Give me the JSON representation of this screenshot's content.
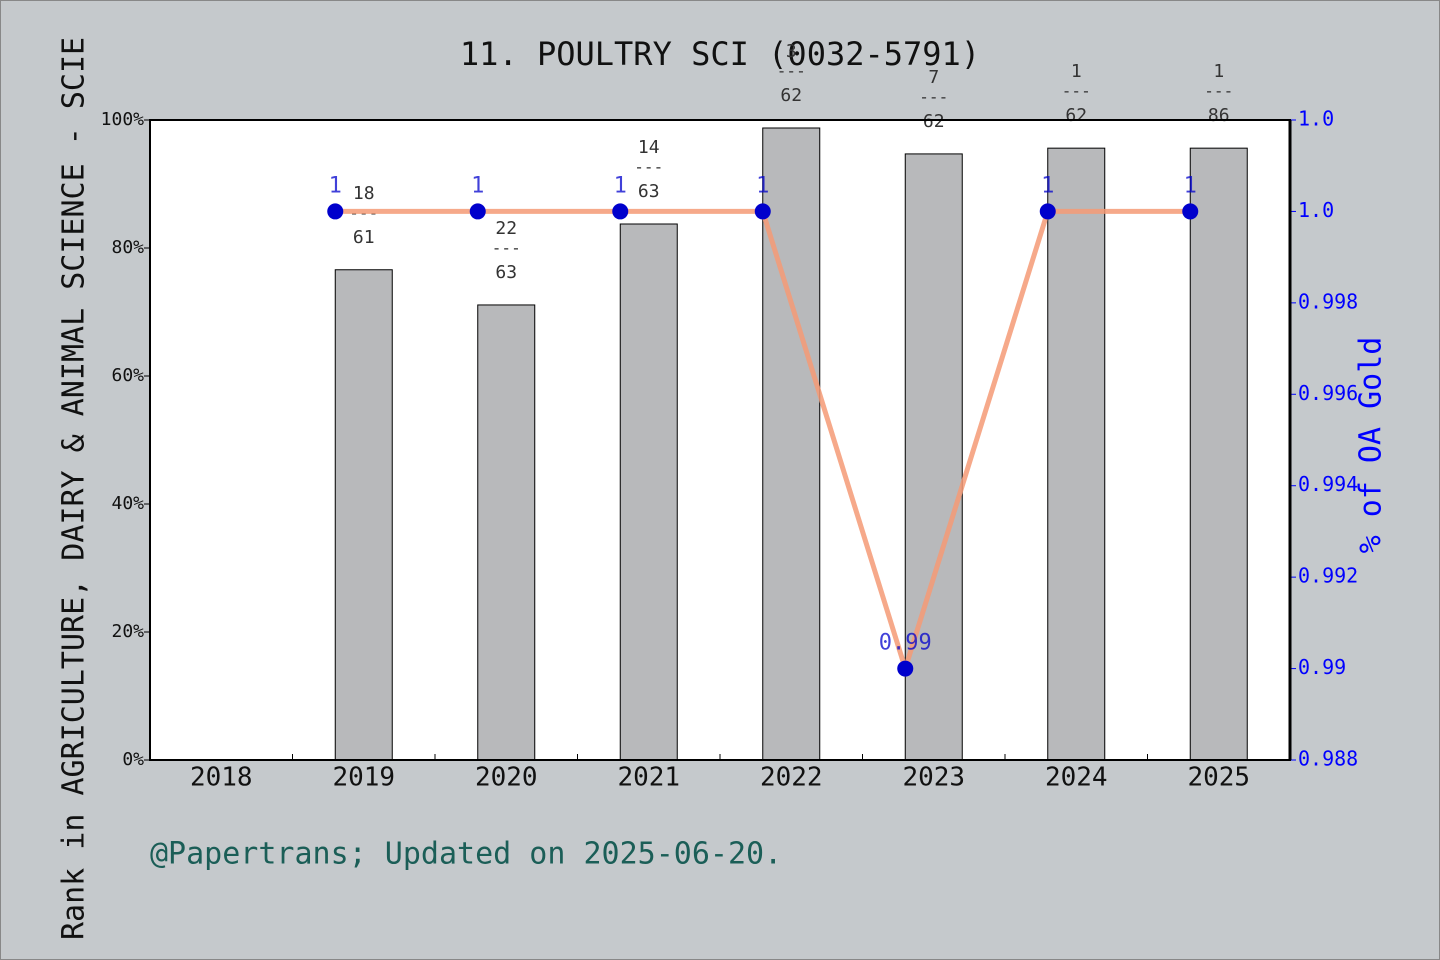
{
  "chart_data": {
    "type": "combo",
    "title": "11. POULTRY SCI (0032-5791)",
    "y_label": "Rank in AGRICULTURE, DAIRY & ANIMAL SCIENCE - SCIE",
    "y2_label": "% of OA Gold",
    "footer": "@Papertrans; Updated on 2025-06-20.",
    "categories": [
      "2018",
      "2019",
      "2020",
      "2021",
      "2022",
      "2023",
      "2024",
      "2025"
    ],
    "ylim": [
      0,
      100
    ],
    "yticks": [
      {
        "value": 0,
        "label": "0%"
      },
      {
        "value": 20,
        "label": "20%"
      },
      {
        "value": 40,
        "label": "40%"
      },
      {
        "value": 60,
        "label": "60%"
      },
      {
        "value": 80,
        "label": "80%"
      },
      {
        "value": 100,
        "label": "100%"
      }
    ],
    "y2lim": [
      0.988,
      1.002
    ],
    "y2ticks": [
      0.988,
      0.99,
      0.992,
      0.994,
      0.996,
      0.998,
      {
        "value": 1.0,
        "label": "1.0"
      },
      {
        "value": 1.002,
        "label": "1.0"
      }
    ],
    "series": [
      {
        "type": "bar",
        "color": "#b8b9bb",
        "values": [
          null,
          76.6,
          71.1,
          83.75,
          98.75,
          94.7,
          95.6,
          95.6
        ],
        "label_numerators": [
          null,
          18,
          22,
          14,
          3,
          7,
          1,
          1
        ],
        "label_denominators": [
          null,
          61,
          63,
          63,
          62,
          62,
          62,
          86
        ],
        "label_separator": "---"
      },
      {
        "type": "line",
        "axis": "y2",
        "color": "#f59a76",
        "marker_color": "#0000cc",
        "values": [
          null,
          1,
          1,
          1,
          1,
          0.99,
          1,
          1
        ]
      }
    ]
  }
}
